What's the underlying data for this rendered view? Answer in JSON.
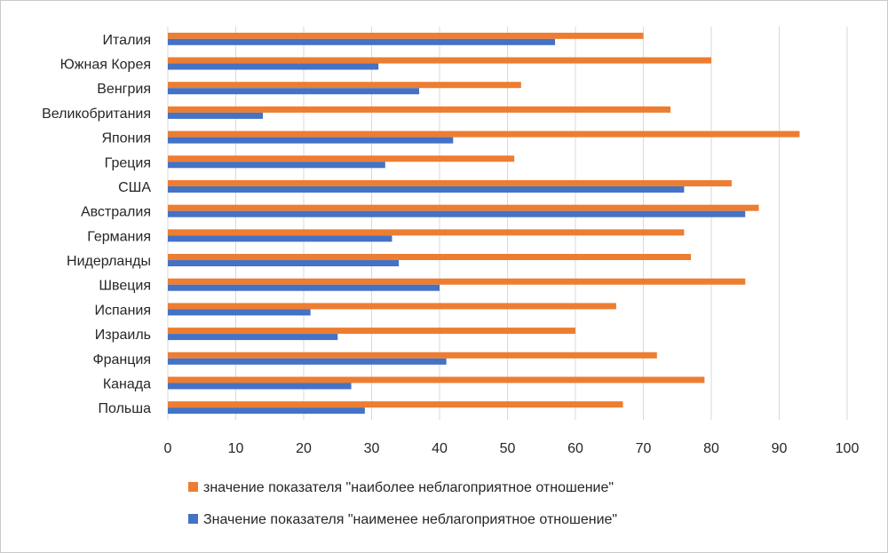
{
  "chart_data": {
    "type": "bar",
    "orientation": "horizontal",
    "categories": [
      "Италия",
      "Южная Корея",
      "Венгрия",
      "Великобритания",
      "Япония",
      "Греция",
      "США",
      "Австралия",
      "Германия",
      "Нидерланды",
      "Швеция",
      "Испания",
      "Израиль",
      "Франция",
      "Канада",
      "Польша"
    ],
    "series": [
      {
        "name": "значение показателя \"наиболее неблагоприятное отношение\"",
        "color": "#ED7D31",
        "values": [
          70,
          80,
          52,
          74,
          93,
          51,
          83,
          87,
          76,
          77,
          85,
          66,
          60,
          72,
          79,
          67
        ]
      },
      {
        "name": "Значение показателя \"наименее неблагоприятное отношение\"",
        "color": "#4472C4",
        "values": [
          57,
          31,
          37,
          14,
          42,
          32,
          76,
          85,
          33,
          34,
          40,
          21,
          25,
          41,
          27,
          29
        ]
      }
    ],
    "xlim": [
      0,
      100
    ],
    "xticks": [
      "0",
      "10",
      "20",
      "30",
      "40",
      "50",
      "60",
      "70",
      "80",
      "90",
      "100"
    ],
    "grid": "vertical",
    "legend_position": "bottom"
  }
}
